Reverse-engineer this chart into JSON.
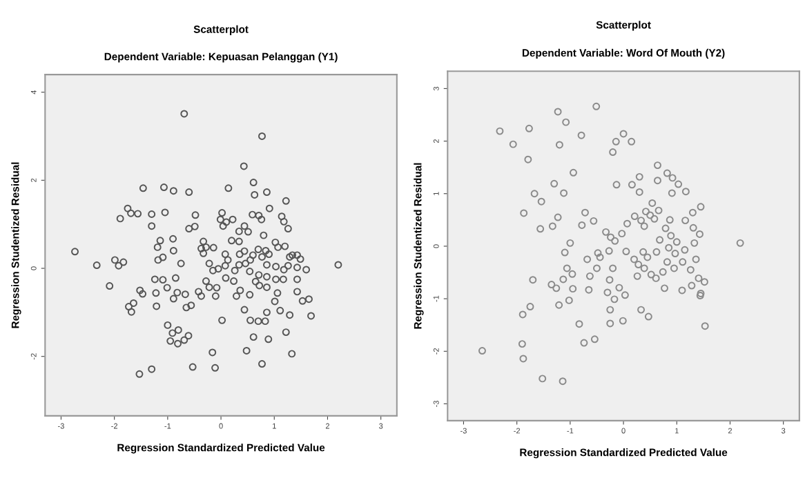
{
  "chart_data": [
    {
      "type": "scatter",
      "title": "Scatterplot",
      "subtitle": "Dependent Variable: Kepuasan Pelanggan (Y1)",
      "xlabel": "Regression Standardized Predicted Value",
      "ylabel": "Regression Studentized Residual",
      "xlim": [
        -3.3,
        3.3
      ],
      "ylim": [
        -3.35,
        4.4
      ],
      "xticks": [
        -3,
        -2,
        -1,
        0,
        1,
        2,
        3
      ],
      "yticks": [
        -2,
        0,
        2,
        4
      ],
      "grid": false,
      "legend": false,
      "marker": "circle",
      "series": [
        {
          "color": "#555555",
          "x": [
            -0.69,
            0.77,
            0.43,
            -1.46,
            -1.07,
            -0.89,
            -0.6,
            0.14,
            0.61,
            0.63,
            0.86,
            1.22,
            0.91,
            -1.75,
            -1.69,
            -1.56,
            -1.89,
            -1.3,
            -1.05,
            -1.3,
            -0.48,
            -0.6,
            -0.49,
            0.02,
            -0.01,
            0.1,
            0.22,
            0.04,
            0.59,
            0.71,
            0.76,
            1.14,
            1.18,
            1.26,
            0.44,
            0.51,
            0.34,
            0.8,
            0.2,
            0.34,
            -1.14,
            -1.19,
            -0.9,
            -0.89,
            -1.18,
            -1.09,
            -0.75,
            -0.33,
            -0.37,
            -0.28,
            -0.14,
            -0.33,
            0.08,
            0.13,
            0.44,
            0.35,
            0.6,
            0.7,
            0.84,
            0.9,
            1.02,
            1.07,
            1.2,
            1.29,
            1.34,
            1.43,
            1.49,
            -2.74,
            -2.33,
            -1.99,
            -1.92,
            -1.83,
            -2.09,
            -0.22,
            -0.15,
            -0.05,
            0.08,
            0.26,
            0.34,
            0.46,
            0.55,
            0.54,
            0.77,
            0.86,
            1.03,
            1.18,
            1.26,
            1.43,
            1.6,
            2.2,
            -1.24,
            -1.09,
            -0.85,
            -1.01,
            -1.52,
            -1.47,
            -1.22,
            -0.82,
            -0.89,
            -0.67,
            -0.42,
            -0.37,
            -0.28,
            -0.22,
            -0.08,
            -0.1,
            0.09,
            0.24,
            0.36,
            0.29,
            0.54,
            0.65,
            0.71,
            0.72,
            0.86,
            0.86,
            1.03,
            1.17,
            1.43,
            1.43,
            1.06,
            1.01,
            1.53,
            1.65,
            1.69,
            -1.64,
            -1.73,
            -1.68,
            -1.21,
            -0.65,
            -0.56,
            0.44,
            0.86,
            1.11,
            1.29,
            0.02,
            0.55,
            0.7,
            0.83,
            -1.0,
            -0.91,
            -0.8,
            -0.95,
            -0.81,
            -0.69,
            -0.61,
            0.61,
            0.89,
            1.22,
            -0.16,
            0.48,
            1.33,
            -1.53,
            -1.3,
            -0.53,
            -0.11,
            0.77
          ],
          "values": [
            3.51,
            3.0,
            2.32,
            1.82,
            1.84,
            1.76,
            1.73,
            1.82,
            1.95,
            1.67,
            1.73,
            1.53,
            1.36,
            1.36,
            1.25,
            1.24,
            1.13,
            1.23,
            1.27,
            0.96,
            1.21,
            0.9,
            0.95,
            1.26,
            1.11,
            1.05,
            1.11,
            0.96,
            1.22,
            1.2,
            1.11,
            1.18,
            1.06,
            0.9,
            0.96,
            0.83,
            0.84,
            0.75,
            0.63,
            0.61,
            0.63,
            0.48,
            0.67,
            0.4,
            0.19,
            0.25,
            0.11,
            0.61,
            0.45,
            0.48,
            0.47,
            0.34,
            0.32,
            0.19,
            0.39,
            0.32,
            0.3,
            0.43,
            0.4,
            0.32,
            0.59,
            0.48,
            0.5,
            0.26,
            0.3,
            0.3,
            0.21,
            0.38,
            0.07,
            0.19,
            0.06,
            0.14,
            -0.4,
            0.11,
            -0.05,
            -0.01,
            0.06,
            -0.05,
            0.08,
            0.11,
            0.19,
            -0.07,
            0.26,
            0.08,
            0.04,
            -0.03,
            0.06,
            0.02,
            -0.03,
            0.08,
            -0.25,
            -0.26,
            -0.22,
            -0.44,
            -0.5,
            -0.58,
            -0.56,
            -0.55,
            -0.69,
            -0.59,
            -0.53,
            -0.63,
            -0.29,
            -0.43,
            -0.44,
            -0.63,
            -0.22,
            -0.29,
            -0.5,
            -0.63,
            -0.6,
            -0.3,
            -0.15,
            -0.39,
            -0.19,
            -0.43,
            -0.25,
            -0.25,
            -0.25,
            -0.53,
            -0.56,
            -0.75,
            -0.74,
            -0.7,
            -1.08,
            -0.79,
            -0.87,
            -0.99,
            -0.86,
            -0.89,
            -0.84,
            -0.94,
            -1.0,
            -0.96,
            -1.06,
            -1.18,
            -1.18,
            -1.2,
            -1.2,
            -1.29,
            -1.47,
            -1.4,
            -1.65,
            -1.71,
            -1.63,
            -1.53,
            -1.56,
            -1.61,
            -1.45,
            -1.91,
            -1.87,
            -1.94,
            -2.4,
            -2.29,
            -2.24,
            -2.26,
            -2.17
          ]
        }
      ]
    },
    {
      "type": "scatter",
      "title": "Scatterplot",
      "subtitle": "Dependent Variable: Word Of Mouth (Y2)",
      "xlabel": "Regression Standardized Predicted Value",
      "ylabel": "Regression Studentized Residual",
      "xlim": [
        -3.3,
        3.3
      ],
      "ylim": [
        -3.32,
        3.33
      ],
      "xticks": [
        -3,
        -2,
        -1,
        0,
        1,
        2,
        3
      ],
      "yticks": [
        -3,
        -2,
        -1,
        0,
        1,
        2,
        3
      ],
      "grid": false,
      "legend": false,
      "marker": "circle",
      "series": [
        {
          "color": "#8a8a8a",
          "x": [
            -0.51,
            -1.23,
            -1.08,
            -2.32,
            -1.77,
            -0.79,
            -2.07,
            -1.2,
            0.0,
            -0.14,
            0.15,
            -0.2,
            -1.79,
            -0.94,
            0.64,
            0.64,
            0.82,
            0.92,
            1.03,
            1.17,
            0.91,
            -0.13,
            0.16,
            0.3,
            0.3,
            -1.3,
            -1.12,
            -1.67,
            -1.54,
            -1.87,
            -1.56,
            -1.33,
            -1.23,
            -0.72,
            -0.78,
            -0.56,
            0.54,
            0.66,
            0.42,
            0.21,
            0.33,
            0.39,
            0.5,
            0.58,
            0.07,
            -0.03,
            -0.33,
            -0.24,
            -0.16,
            0.87,
            0.79,
            0.89,
            1.0,
            1.16,
            1.3,
            1.45,
            1.31,
            1.43,
            1.33,
            2.19,
            0.68,
            -1.0,
            -1.1,
            -0.27,
            0.05,
            0.37,
            0.45,
            0.62,
            0.85,
            0.97,
            1.15,
            1.11,
            1.36,
            0.82,
            0.95,
            1.26,
            0.74,
            0.2,
            0.28,
            0.39,
            0.52,
            0.61,
            0.26,
            -0.68,
            -0.48,
            -0.44,
            -0.5,
            -0.2,
            -0.26,
            -1.06,
            -0.96,
            -1.13,
            -0.63,
            -0.65,
            -1.35,
            -1.26,
            -0.95,
            -1.7,
            -1.02,
            -1.21,
            -0.3,
            -0.17,
            -0.08,
            0.03,
            -0.25,
            -0.25,
            -0.01,
            0.77,
            1.1,
            1.28,
            1.41,
            1.52,
            1.45,
            1.44,
            1.53,
            0.33,
            0.47,
            -1.75,
            -1.89,
            -0.83,
            -0.74,
            -0.54,
            -1.9,
            -1.88,
            -2.65,
            -1.52,
            -1.14
          ],
          "values": [
            2.66,
            2.56,
            2.36,
            2.19,
            2.24,
            2.11,
            1.94,
            1.93,
            2.14,
            1.99,
            1.99,
            1.79,
            1.65,
            1.4,
            1.54,
            1.25,
            1.39,
            1.3,
            1.18,
            1.04,
            1.01,
            1.17,
            1.17,
            1.32,
            1.03,
            1.19,
            1.01,
            1.0,
            0.85,
            0.63,
            0.33,
            0.38,
            0.55,
            0.64,
            0.4,
            0.48,
            0.82,
            0.68,
            0.66,
            0.57,
            0.49,
            0.38,
            0.59,
            0.52,
            0.43,
            0.24,
            0.27,
            0.17,
            0.1,
            0.5,
            0.34,
            0.2,
            0.08,
            0.49,
            0.64,
            0.75,
            0.35,
            0.23,
            0.06,
            0.06,
            0.12,
            0.06,
            -0.12,
            -0.09,
            -0.1,
            -0.11,
            -0.21,
            -0.11,
            -0.03,
            -0.14,
            -0.07,
            -0.3,
            -0.25,
            -0.3,
            -0.42,
            -0.45,
            -0.49,
            -0.25,
            -0.35,
            -0.42,
            -0.54,
            -0.61,
            -0.57,
            -0.25,
            -0.13,
            -0.21,
            -0.42,
            -0.42,
            -0.64,
            -0.42,
            -0.53,
            -0.63,
            -0.57,
            -0.83,
            -0.73,
            -0.8,
            -0.81,
            -0.64,
            -1.03,
            -1.12,
            -0.88,
            -1.01,
            -0.79,
            -0.93,
            -1.21,
            -1.47,
            -1.42,
            -0.8,
            -0.84,
            -0.75,
            -0.61,
            -0.68,
            -0.9,
            -0.94,
            -1.52,
            -1.21,
            -1.34,
            -1.15,
            -1.3,
            -1.48,
            -1.84,
            -1.77,
            -1.86,
            -2.14,
            -1.99,
            -2.52,
            -2.57
          ]
        }
      ]
    }
  ]
}
